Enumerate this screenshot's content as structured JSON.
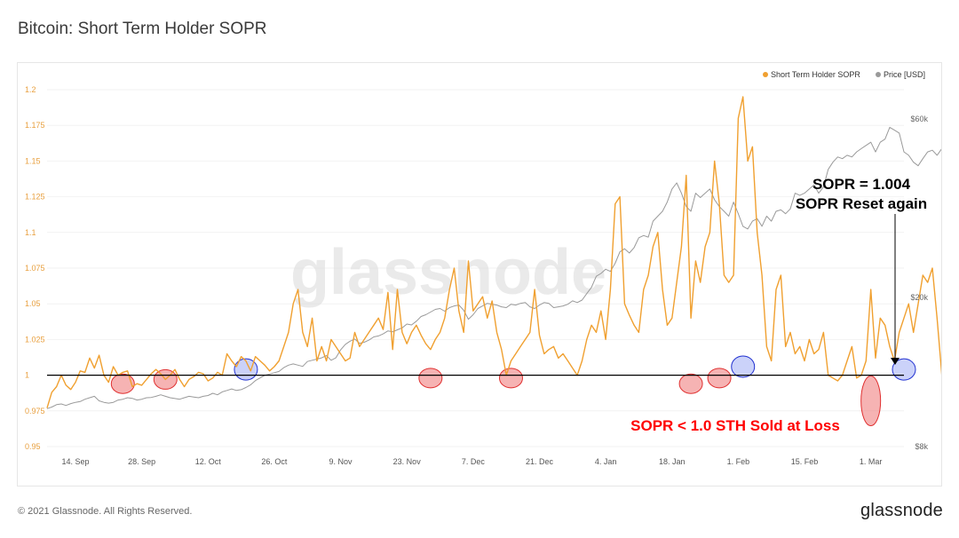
{
  "title": "Bitcoin: Short Term Holder SOPR",
  "footer": {
    "copyright": "© 2021 Glassnode. All Rights Reserved.",
    "brand": "glassnode"
  },
  "watermark": "glassnode",
  "colors": {
    "sopr": "#f0a030",
    "price": "#9a9a9a",
    "baseline": "#000000",
    "red_marker": "#f08080",
    "blue_marker": "#a9b4f5",
    "annotation_red": "#ff0000"
  },
  "chart_data": {
    "type": "line",
    "xlabels": [
      "14. Sep",
      "28. Sep",
      "12. Oct",
      "26. Oct",
      "9. Nov",
      "23. Nov",
      "7. Dec",
      "21. Dec",
      "4. Jan",
      "18. Jan",
      "1. Feb",
      "15. Feb",
      "1. Mar"
    ],
    "x_range": [
      "2020-09-08",
      "2021-03-08"
    ],
    "ylim_left": [
      0.95,
      1.2
    ],
    "yticks_left": [
      0.95,
      0.975,
      1,
      1.025,
      1.05,
      1.075,
      1.1,
      1.125,
      1.15,
      1.175,
      1.2
    ],
    "ytick_labels_left": [
      "0.95",
      "0.975",
      "1",
      "1.025",
      "1.05",
      "1.075",
      "1.1",
      "1.125",
      "1.15",
      "1.175",
      "1.2"
    ],
    "yscale_right": "log",
    "ytick_labels_right": [
      "$8k",
      "$20k",
      "$60k"
    ],
    "baseline": 1,
    "legend": [
      "Short Term Holder SOPR",
      "Price [USD]"
    ],
    "legend_position": "top-right",
    "series": [
      {
        "name": "Short Term Holder SOPR",
        "axis": "left",
        "start": "2020-09-08",
        "values": [
          0.977,
          0.988,
          0.992,
          1.0,
          0.993,
          0.99,
          0.995,
          1.003,
          1.002,
          1.012,
          1.005,
          1.014,
          1.0,
          0.995,
          1.006,
          1.0,
          1.002,
          1.003,
          0.992,
          0.994,
          0.993,
          0.997,
          1.001,
          1.004,
          1.001,
          0.997,
          1.0,
          1.004,
          0.997,
          0.992,
          0.997,
          0.999,
          1.002,
          1.001,
          0.996,
          0.998,
          1.002,
          1.0,
          1.015,
          1.01,
          1.006,
          1.013,
          1.01,
          1.003,
          1.013,
          1.01,
          1.007,
          1.003,
          1.006,
          1.01,
          1.02,
          1.03,
          1.05,
          1.06,
          1.03,
          1.02,
          1.04,
          1.01,
          1.02,
          1.01,
          1.025,
          1.02,
          1.015,
          1.01,
          1.012,
          1.03,
          1.02,
          1.025,
          1.03,
          1.035,
          1.04,
          1.032,
          1.058,
          1.018,
          1.06,
          1.03,
          1.022,
          1.03,
          1.035,
          1.028,
          1.022,
          1.018,
          1.025,
          1.03,
          1.04,
          1.06,
          1.075,
          1.045,
          1.03,
          1.08,
          1.045,
          1.05,
          1.055,
          1.04,
          1.052,
          1.03,
          1.018,
          1.0,
          1.01,
          1.015,
          1.02,
          1.025,
          1.03,
          1.06,
          1.028,
          1.015,
          1.018,
          1.02,
          1.012,
          1.015,
          1.01,
          1.005,
          1.0,
          1.01,
          1.025,
          1.035,
          1.03,
          1.045,
          1.025,
          1.06,
          1.12,
          1.125,
          1.05,
          1.042,
          1.035,
          1.03,
          1.06,
          1.07,
          1.09,
          1.1,
          1.06,
          1.035,
          1.04,
          1.065,
          1.09,
          1.14,
          1.04,
          1.08,
          1.065,
          1.09,
          1.1,
          1.15,
          1.12,
          1.07,
          1.065,
          1.07,
          1.18,
          1.195,
          1.15,
          1.16,
          1.1,
          1.07,
          1.02,
          1.01,
          1.06,
          1.07,
          1.02,
          1.03,
          1.015,
          1.02,
          1.01,
          1.025,
          1.015,
          1.018,
          1.03,
          1.0,
          0.998,
          0.996,
          1.0,
          1.01,
          1.02,
          0.998,
          1.0,
          1.01,
          1.06,
          1.012,
          1.04,
          1.035,
          1.02,
          1.01,
          1.03,
          1.04,
          1.05,
          1.03,
          1.05,
          1.07,
          1.065,
          1.075,
          1.04,
          1.0,
          1.09,
          1.15,
          1.1,
          1.06,
          1.07,
          1.055,
          1.06,
          1.05,
          1.09,
          1.035,
          1.05,
          1.04,
          1.08,
          1.06,
          1.09,
          1.1,
          1.12,
          1.095,
          1.06,
          1.03,
          1.04,
          1.045,
          1.03,
          1.027,
          1.06,
          0.985,
          0.97,
          1.02,
          1.04,
          1.03,
          1.035,
          1.028,
          1.02,
          1.035,
          1.03
        ]
      },
      {
        "name": "Price [USD]",
        "axis": "right",
        "start": "2020-09-08",
        "values": [
          10100,
          10200,
          10350,
          10400,
          10300,
          10420,
          10500,
          10550,
          10700,
          10800,
          10900,
          10600,
          10500,
          10450,
          10500,
          10650,
          10700,
          10800,
          10760,
          10650,
          10700,
          10800,
          10820,
          10900,
          11000,
          10900,
          10800,
          10750,
          10700,
          10800,
          10900,
          10850,
          10800,
          10900,
          10950,
          11100,
          11000,
          11200,
          11300,
          11400,
          11300,
          11350,
          11500,
          11700,
          12000,
          12200,
          12400,
          12500,
          12600,
          12700,
          13000,
          13200,
          13300,
          13200,
          13100,
          13500,
          13600,
          13700,
          13800,
          14000,
          13600,
          13800,
          14500,
          15000,
          15300,
          15500,
          15100,
          15200,
          15400,
          15700,
          15800,
          16000,
          16300,
          16200,
          16400,
          16600,
          17000,
          16900,
          17300,
          17800,
          18000,
          18300,
          18600,
          18700,
          18400,
          18800,
          19000,
          19100,
          18500,
          17500,
          18000,
          18700,
          19000,
          19300,
          19200,
          19100,
          18900,
          18800,
          19200,
          19100,
          19300,
          19400,
          18900,
          18700,
          19100,
          19400,
          19300,
          18800,
          18900,
          19000,
          19200,
          19600,
          19400,
          19700,
          20500,
          21300,
          22800,
          23200,
          23800,
          23500,
          24700,
          26500,
          27000,
          26300,
          27200,
          28900,
          29300,
          29000,
          32000,
          33000,
          34000,
          36000,
          39000,
          40500,
          38000,
          35000,
          34000,
          38000,
          37000,
          38000,
          39000,
          36500,
          35000,
          34000,
          33000,
          36000,
          33500,
          31000,
          30500,
          32000,
          32500,
          31000,
          33000,
          32000,
          34000,
          34300,
          33500,
          34500,
          38000,
          37500,
          38000,
          39000,
          40000,
          38000,
          39500,
          44000,
          46000,
          47500,
          47000,
          48000,
          47500,
          49000,
          50000,
          51000,
          52000,
          49000,
          52000,
          53000,
          57000,
          56000,
          55000,
          49000,
          48000,
          46000,
          45000,
          47000,
          49000,
          49500,
          48000,
          50000,
          51000,
          51500,
          52000,
          49800,
          50500,
          51000
        ]
      }
    ],
    "annotations": [
      {
        "text": "SOPR = 1.004",
        "color": "#000000"
      },
      {
        "text": "SOPR Reset again",
        "color": "#000000"
      },
      {
        "text": "SOPR < 1.0 STH Sold at Loss",
        "color": "#ff0000"
      }
    ],
    "markers": [
      {
        "date": "2020-09-24",
        "value": 0.994,
        "color": "red"
      },
      {
        "date": "2020-10-03",
        "value": 0.997,
        "color": "red"
      },
      {
        "date": "2020-10-20",
        "value": 1.004,
        "color": "blue"
      },
      {
        "date": "2020-11-28",
        "value": 0.998,
        "color": "red"
      },
      {
        "date": "2020-12-15",
        "value": 0.998,
        "color": "red"
      },
      {
        "date": "2021-01-22",
        "value": 0.994,
        "color": "red"
      },
      {
        "date": "2021-01-28",
        "value": 0.998,
        "color": "red"
      },
      {
        "date": "2021-02-02",
        "value": 1.006,
        "color": "blue"
      },
      {
        "date": "2021-03-01",
        "value": 0.981,
        "color": "red"
      },
      {
        "date": "2021-03-08",
        "value": 1.004,
        "color": "blue"
      }
    ]
  }
}
